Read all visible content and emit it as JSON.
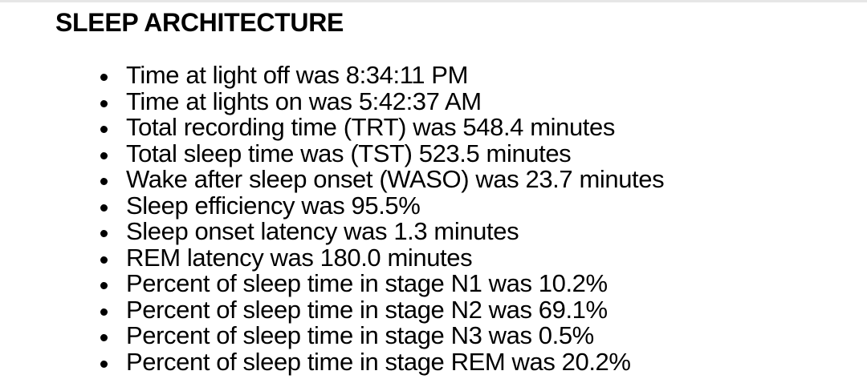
{
  "section": {
    "title": "SLEEP ARCHITECTURE",
    "items": [
      "Time at light off was 8:34:11 PM",
      "Time at lights on was 5:42:37 AM",
      "Total recording time (TRT) was 548.4 minutes",
      "Total sleep time was (TST) 523.5 minutes",
      "Wake after sleep onset (WASO) was 23.7 minutes",
      "Sleep efficiency was 95.5%",
      "Sleep onset latency was 1.3 minutes",
      "REM latency was 180.0 minutes",
      "Percent of sleep time in stage N1 was 10.2%",
      "Percent of sleep time in stage N2 was 69.1%",
      "Percent of sleep time in stage N3 was 0.5%",
      "Percent of sleep time in stage REM was 20.2%"
    ]
  },
  "colors": {
    "text": "#000000",
    "background": "#ffffff"
  }
}
